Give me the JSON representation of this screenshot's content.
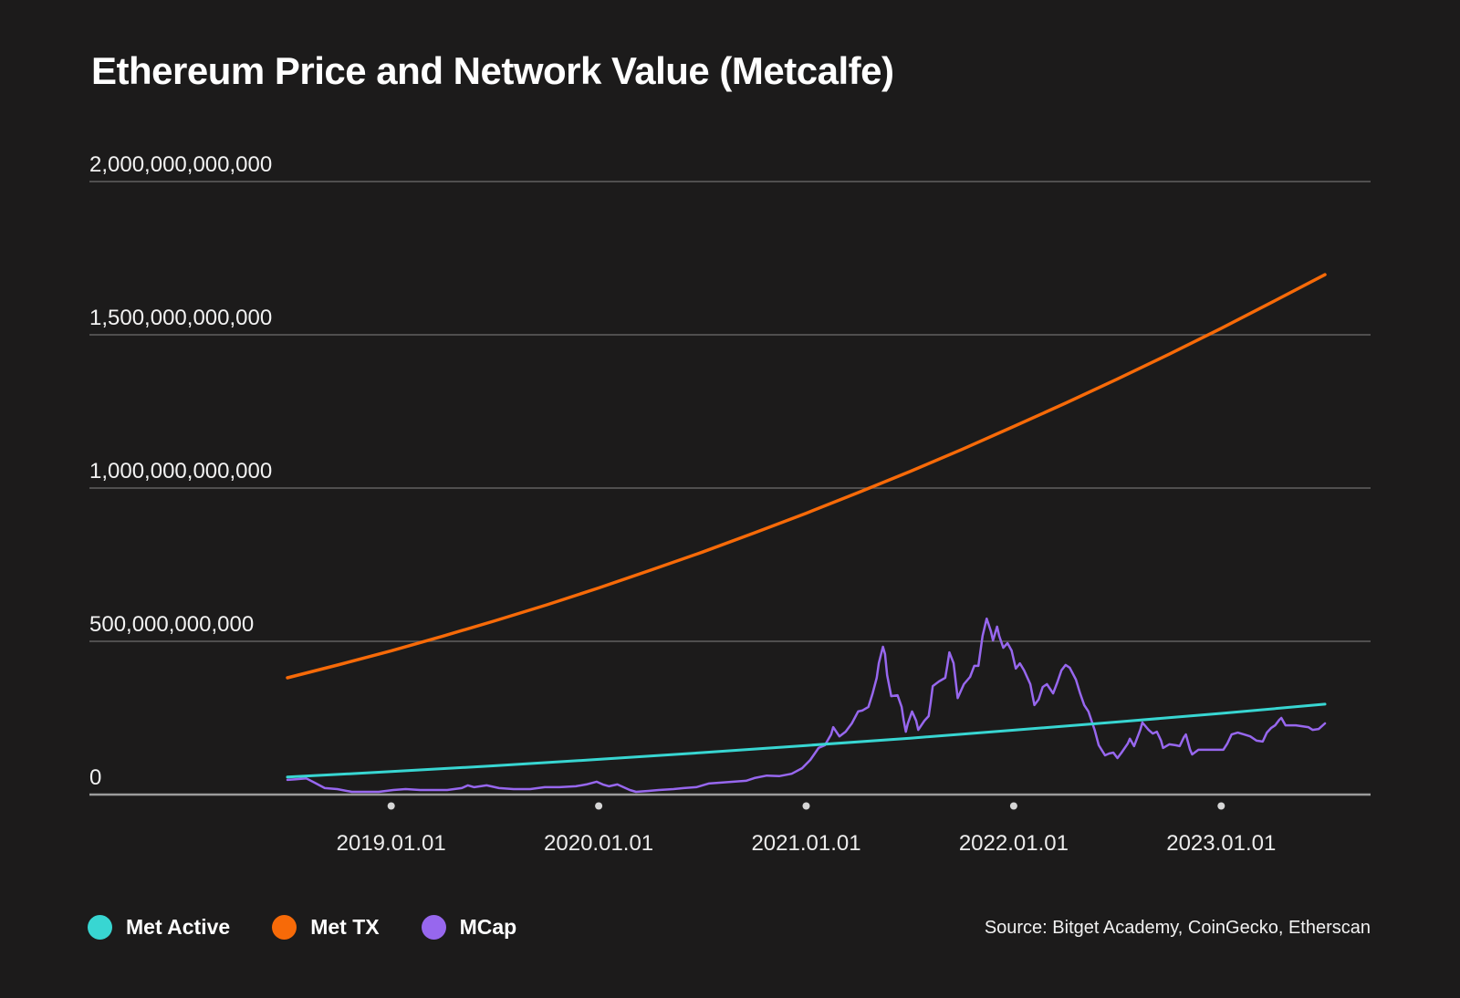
{
  "title": "Ethereum Price and Network Value (Metcalfe)",
  "source": "Source: Bitget Academy, CoinGecko, Etherscan",
  "colors": {
    "background": "#1c1b1b",
    "grid": "#616161",
    "axis": "#9c9c9c",
    "tick_dot": "#d6d6d6",
    "text": "#ffffff",
    "met_active": "#38d6d2",
    "met_tx": "#f76a08",
    "mcap": "#9767ee"
  },
  "legend": [
    {
      "label": "Met Active",
      "color": "#38d6d2"
    },
    {
      "label": "Met TX",
      "color": "#f76a08"
    },
    {
      "label": "MCap",
      "color": "#9767ee"
    }
  ],
  "chart_data": {
    "type": "line",
    "title": "Ethereum Price and Network Value (Metcalfe)",
    "grid": true,
    "legend_position": "bottom-left",
    "x_axis": {
      "tick_labels": [
        "2019.01.01",
        "2020.01.01",
        "2021.01.01",
        "2022.01.01",
        "2023.01.01"
      ],
      "tick_years": [
        2019,
        2020,
        2021,
        2022,
        2023
      ],
      "range_years": [
        2018.5,
        2023.5
      ]
    },
    "y_axis": {
      "tick_labels": [
        "2,000,000,000,000",
        "1,500,000,000,000",
        "1,000,000,000,000",
        "500,000,000,000",
        "0"
      ],
      "tick_values_billions": [
        2000,
        1500,
        1000,
        500,
        0
      ],
      "range_billions": [
        0,
        2000
      ],
      "unit": "USD"
    },
    "series": [
      {
        "name": "Met Active",
        "color": "#38d6d2",
        "unit": "USD billions",
        "points": [
          [
            2018.5,
            57
          ],
          [
            2019.0,
            75
          ],
          [
            2019.5,
            94
          ],
          [
            2020.0,
            115
          ],
          [
            2020.5,
            137
          ],
          [
            2021.0,
            160
          ],
          [
            2021.5,
            184
          ],
          [
            2022.0,
            210
          ],
          [
            2022.5,
            237
          ],
          [
            2023.0,
            265
          ],
          [
            2023.5,
            295
          ]
        ]
      },
      {
        "name": "Met TX",
        "color": "#f76a08",
        "unit": "USD billions",
        "points": [
          [
            2018.5,
            381
          ],
          [
            2018.75,
            424
          ],
          [
            2019.0,
            469
          ],
          [
            2019.25,
            517
          ],
          [
            2019.5,
            567
          ],
          [
            2019.75,
            619
          ],
          [
            2020.0,
            674
          ],
          [
            2020.25,
            732
          ],
          [
            2020.5,
            791
          ],
          [
            2020.75,
            854
          ],
          [
            2021.0,
            918
          ],
          [
            2021.25,
            985
          ],
          [
            2021.5,
            1054
          ],
          [
            2021.75,
            1126
          ],
          [
            2022.0,
            1201
          ],
          [
            2022.25,
            1277
          ],
          [
            2022.5,
            1356
          ],
          [
            2022.75,
            1437
          ],
          [
            2023.0,
            1521
          ],
          [
            2023.25,
            1608
          ],
          [
            2023.5,
            1696
          ]
        ]
      },
      {
        "name": "MCap",
        "color": "#9767ee",
        "unit": "USD billions",
        "points": [
          [
            2018.5,
            48
          ],
          [
            2018.54,
            50
          ],
          [
            2018.59,
            53
          ],
          [
            2018.63,
            39
          ],
          [
            2018.68,
            21
          ],
          [
            2018.74,
            18
          ],
          [
            2018.81,
            9
          ],
          [
            2018.87,
            9
          ],
          [
            2018.94,
            9
          ],
          [
            2019.01,
            15
          ],
          [
            2019.07,
            18
          ],
          [
            2019.14,
            15
          ],
          [
            2019.2,
            15
          ],
          [
            2019.27,
            15
          ],
          [
            2019.34,
            21
          ],
          [
            2019.37,
            30
          ],
          [
            2019.4,
            24
          ],
          [
            2019.46,
            30
          ],
          [
            2019.52,
            21
          ],
          [
            2019.59,
            18
          ],
          [
            2019.67,
            18
          ],
          [
            2019.74,
            24
          ],
          [
            2019.81,
            24
          ],
          [
            2019.89,
            27
          ],
          [
            2019.94,
            33
          ],
          [
            2019.99,
            42
          ],
          [
            2020.02,
            33
          ],
          [
            2020.05,
            27
          ],
          [
            2020.09,
            33
          ],
          [
            2020.15,
            15
          ],
          [
            2020.18,
            9
          ],
          [
            2020.24,
            12
          ],
          [
            2020.29,
            15
          ],
          [
            2020.36,
            18
          ],
          [
            2020.41,
            21
          ],
          [
            2020.47,
            24
          ],
          [
            2020.53,
            36
          ],
          [
            2020.59,
            39
          ],
          [
            2020.65,
            42
          ],
          [
            2020.71,
            45
          ],
          [
            2020.75,
            54
          ],
          [
            2020.81,
            62
          ],
          [
            2020.87,
            60
          ],
          [
            2020.93,
            68
          ],
          [
            2020.98,
            86
          ],
          [
            2021.02,
            113
          ],
          [
            2021.06,
            152
          ],
          [
            2021.09,
            161
          ],
          [
            2021.12,
            196
          ],
          [
            2021.13,
            220
          ],
          [
            2021.16,
            190
          ],
          [
            2021.19,
            205
          ],
          [
            2021.22,
            232
          ],
          [
            2021.25,
            271
          ],
          [
            2021.27,
            274
          ],
          [
            2021.3,
            286
          ],
          [
            2021.32,
            330
          ],
          [
            2021.34,
            381
          ],
          [
            2021.35,
            429
          ],
          [
            2021.37,
            482
          ],
          [
            2021.38,
            458
          ],
          [
            2021.39,
            390
          ],
          [
            2021.41,
            321
          ],
          [
            2021.44,
            324
          ],
          [
            2021.46,
            286
          ],
          [
            2021.47,
            241
          ],
          [
            2021.48,
            205
          ],
          [
            2021.49,
            232
          ],
          [
            2021.51,
            271
          ],
          [
            2021.53,
            241
          ],
          [
            2021.54,
            211
          ],
          [
            2021.57,
            241
          ],
          [
            2021.59,
            256
          ],
          [
            2021.6,
            300
          ],
          [
            2021.61,
            354
          ],
          [
            2021.64,
            369
          ],
          [
            2021.67,
            381
          ],
          [
            2021.68,
            420
          ],
          [
            2021.69,
            464
          ],
          [
            2021.71,
            429
          ],
          [
            2021.73,
            315
          ],
          [
            2021.76,
            360
          ],
          [
            2021.79,
            384
          ],
          [
            2021.81,
            420
          ],
          [
            2021.83,
            420
          ],
          [
            2021.85,
            518
          ],
          [
            2021.87,
            574
          ],
          [
            2021.89,
            533
          ],
          [
            2021.9,
            503
          ],
          [
            2021.92,
            548
          ],
          [
            2021.93,
            518
          ],
          [
            2021.95,
            479
          ],
          [
            2021.97,
            494
          ],
          [
            2021.99,
            470
          ],
          [
            2022.01,
            411
          ],
          [
            2022.03,
            428
          ],
          [
            2022.05,
            405
          ],
          [
            2022.08,
            360
          ],
          [
            2022.1,
            292
          ],
          [
            2022.12,
            310
          ],
          [
            2022.14,
            351
          ],
          [
            2022.16,
            360
          ],
          [
            2022.19,
            330
          ],
          [
            2022.21,
            366
          ],
          [
            2022.23,
            405
          ],
          [
            2022.25,
            423
          ],
          [
            2022.27,
            414
          ],
          [
            2022.3,
            375
          ],
          [
            2022.32,
            330
          ],
          [
            2022.34,
            292
          ],
          [
            2022.36,
            271
          ],
          [
            2022.39,
            211
          ],
          [
            2022.41,
            161
          ],
          [
            2022.44,
            128
          ],
          [
            2022.46,
            134
          ],
          [
            2022.48,
            137
          ],
          [
            2022.5,
            119
          ],
          [
            2022.52,
            137
          ],
          [
            2022.55,
            167
          ],
          [
            2022.56,
            182
          ],
          [
            2022.58,
            158
          ],
          [
            2022.61,
            211
          ],
          [
            2022.62,
            235
          ],
          [
            2022.65,
            211
          ],
          [
            2022.67,
            199
          ],
          [
            2022.69,
            205
          ],
          [
            2022.71,
            176
          ],
          [
            2022.72,
            152
          ],
          [
            2022.75,
            164
          ],
          [
            2022.78,
            161
          ],
          [
            2022.8,
            158
          ],
          [
            2022.82,
            187
          ],
          [
            2022.83,
            196
          ],
          [
            2022.85,
            146
          ],
          [
            2022.86,
            131
          ],
          [
            2022.89,
            146
          ],
          [
            2022.92,
            146
          ],
          [
            2022.95,
            146
          ],
          [
            2022.98,
            146
          ],
          [
            2023.01,
            146
          ],
          [
            2023.03,
            167
          ],
          [
            2023.05,
            196
          ],
          [
            2023.08,
            202
          ],
          [
            2023.11,
            196
          ],
          [
            2023.14,
            190
          ],
          [
            2023.17,
            176
          ],
          [
            2023.2,
            173
          ],
          [
            2023.22,
            202
          ],
          [
            2023.24,
            217
          ],
          [
            2023.26,
            226
          ],
          [
            2023.28,
            244
          ],
          [
            2023.29,
            250
          ],
          [
            2023.31,
            226
          ],
          [
            2023.34,
            226
          ],
          [
            2023.36,
            226
          ],
          [
            2023.39,
            223
          ],
          [
            2023.42,
            220
          ],
          [
            2023.44,
            211
          ],
          [
            2023.47,
            214
          ],
          [
            2023.5,
            232
          ]
        ]
      }
    ]
  }
}
